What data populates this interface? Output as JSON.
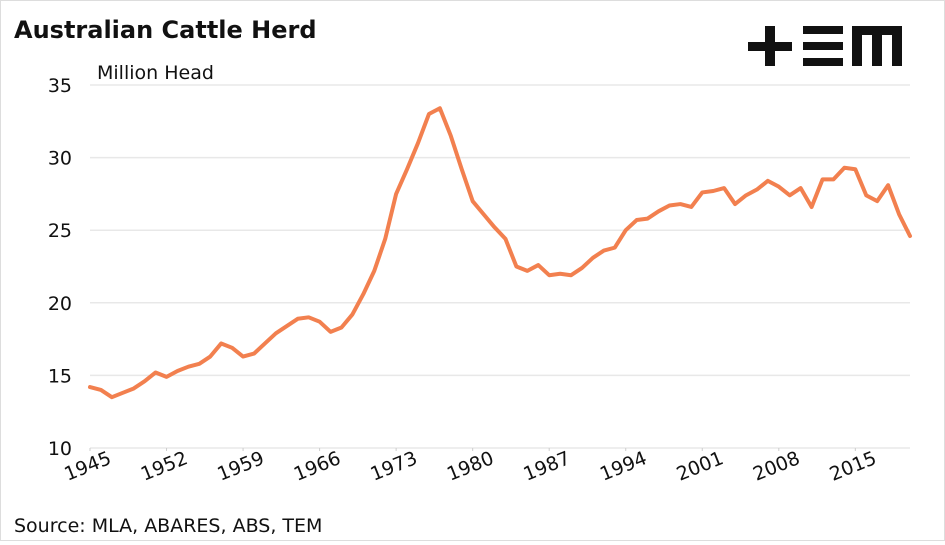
{
  "chart_data": {
    "type": "line",
    "title": "Australian Cattle Herd",
    "subtitle": "Million Head",
    "source": "Source: MLA, ABARES, ABS, TEM",
    "x": [
      1945,
      1946,
      1947,
      1948,
      1949,
      1950,
      1951,
      1952,
      1953,
      1954,
      1955,
      1956,
      1957,
      1958,
      1959,
      1960,
      1961,
      1962,
      1963,
      1964,
      1965,
      1966,
      1967,
      1968,
      1969,
      1970,
      1971,
      1972,
      1973,
      1974,
      1975,
      1976,
      1977,
      1978,
      1979,
      1980,
      1981,
      1982,
      1983,
      1984,
      1985,
      1986,
      1987,
      1988,
      1989,
      1990,
      1991,
      1992,
      1993,
      1994,
      1995,
      1996,
      1997,
      1998,
      1999,
      2000,
      2001,
      2002,
      2003,
      2004,
      2005,
      2006,
      2007,
      2008,
      2009,
      2010,
      2011,
      2012,
      2013,
      2014,
      2015,
      2016,
      2017,
      2018,
      2019,
      2020
    ],
    "series": [
      {
        "name": "Cattle herd",
        "color": "#f2804f",
        "values": [
          14.2,
          14.0,
          13.5,
          13.8,
          14.1,
          14.6,
          15.2,
          14.9,
          15.3,
          15.6,
          15.8,
          16.3,
          17.2,
          16.9,
          16.3,
          16.5,
          17.2,
          17.9,
          18.4,
          18.9,
          19.0,
          18.7,
          18.0,
          18.3,
          19.2,
          20.6,
          22.2,
          24.4,
          27.5,
          29.2,
          31.0,
          33.0,
          33.4,
          31.5,
          29.2,
          27.0,
          26.1,
          25.2,
          24.4,
          22.5,
          22.2,
          22.6,
          21.9,
          22.0,
          21.9,
          22.4,
          23.1,
          23.6,
          23.8,
          25.0,
          25.7,
          25.8,
          26.3,
          26.7,
          26.8,
          26.6,
          27.6,
          27.7,
          27.9,
          26.8,
          27.4,
          27.8,
          28.4,
          28.0,
          27.4,
          27.9,
          26.6,
          28.5,
          28.5,
          29.3,
          29.2,
          27.4,
          27.0,
          28.1,
          26.1,
          24.6
        ]
      }
    ],
    "xlim": [
      1945,
      2020
    ],
    "xticks": [
      1945,
      1952,
      1959,
      1966,
      1973,
      1980,
      1987,
      1994,
      2001,
      2008,
      2015
    ],
    "ylim": [
      10,
      35
    ],
    "yticks": [
      10,
      15,
      20,
      25,
      30,
      35
    ],
    "grid": true
  }
}
